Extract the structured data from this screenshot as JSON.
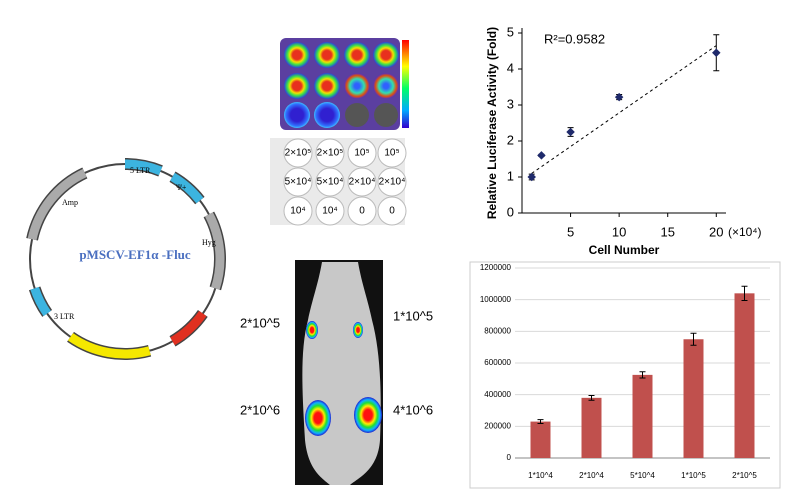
{
  "plasmid": {
    "name": "pMSCV-EF1α -Fluc",
    "labels": [
      "5 LTR",
      "Ψ+",
      "Amp",
      "Hyg",
      "3 LTR"
    ]
  },
  "plate_labels": {
    "rows": [
      [
        "2×10⁵",
        "2×10⁵",
        "10⁵",
        "10⁵"
      ],
      [
        "5×10⁴",
        "5×10⁴",
        "2×10⁴",
        "2×10⁴"
      ],
      [
        "10⁴",
        "10⁴",
        "0",
        "0"
      ]
    ]
  },
  "mouse": {
    "labels": [
      "2*10^5",
      "1*10^5",
      "2*10^6",
      "4*10^6"
    ]
  },
  "chart_data": [
    {
      "type": "scatter",
      "annotation": "R²=0.9582",
      "ylabel": "Relative Luciferase Activity (Fold)",
      "xlabel": "Cell Number",
      "xunit": "(×10⁴)",
      "x": [
        1,
        2,
        5,
        10,
        20
      ],
      "values": [
        1,
        1.6,
        2.25,
        3.22,
        4.45
      ],
      "errors": [
        0.08,
        0.03,
        0.12,
        0.07,
        0.5
      ],
      "color": "#1f2a6b",
      "trendline": {
        "x": [
          1,
          20
        ],
        "values": [
          1.1,
          4.65
        ]
      },
      "xlim": [
        0,
        21
      ],
      "ylim": [
        0,
        5
      ],
      "xticks": [
        5,
        10,
        15,
        20
      ],
      "yticks": [
        0,
        1,
        2,
        3,
        4,
        5
      ]
    },
    {
      "type": "bar",
      "categories": [
        "1*10^4",
        "2*10^4",
        "5*10^4",
        "1*10^5",
        "2*10^5"
      ],
      "values": [
        230000,
        380000,
        525000,
        750000,
        1040000
      ],
      "errors": [
        12000,
        15000,
        20000,
        38000,
        45000
      ],
      "color": "#c0504d",
      "ylim": [
        0,
        1200000
      ],
      "yticks": [
        0,
        200000,
        400000,
        600000,
        800000,
        1000000,
        1200000
      ],
      "grid": true
    }
  ]
}
